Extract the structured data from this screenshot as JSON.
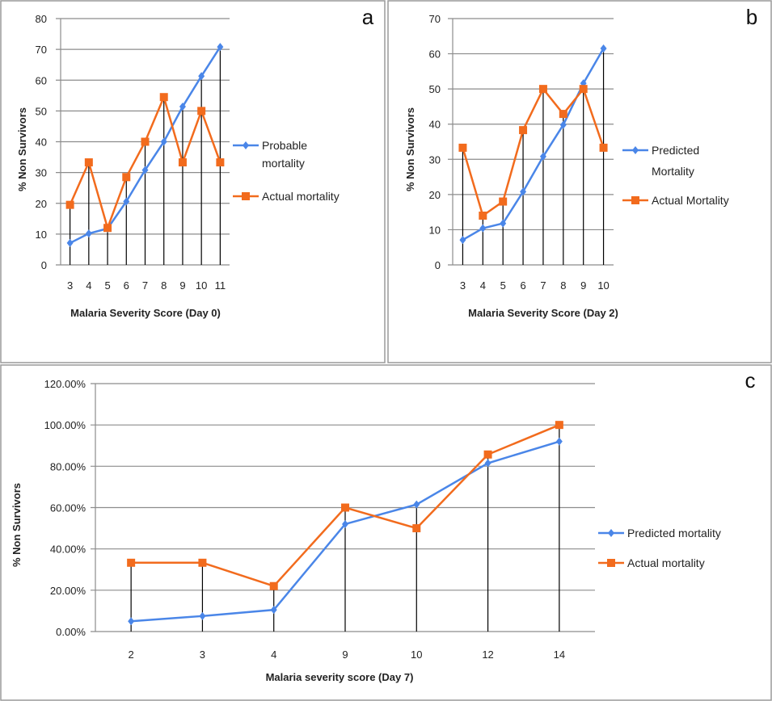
{
  "colors": {
    "predicted": "#4a86e8",
    "actual": "#f26b1d",
    "grid": "#8c8c8c",
    "drop_lines": "#000000",
    "border": "#9a9a9a"
  },
  "chart_data": [
    {
      "type": "line",
      "panel_label": "a",
      "categories": [
        "3",
        "4",
        "5",
        "6",
        "7",
        "8",
        "9",
        "10",
        "11"
      ],
      "xlabel": "Malaria  Severity Score (Day  0)",
      "ylabel": "% Non Survivors",
      "ylim": [
        0,
        80
      ],
      "yticks": [
        "0",
        "10",
        "20",
        "30",
        "40",
        "50",
        "60",
        "70",
        "80"
      ],
      "grid": true,
      "legend_placement": "right",
      "drop_lines": true,
      "series": [
        {
          "name": "Probable mortality",
          "name_lines": [
            "Probable",
            "mortality"
          ],
          "marker": "diamond",
          "color": "#4a86e8",
          "values": [
            7.1,
            10.2,
            11.8,
            20.6,
            30.8,
            40,
            51.4,
            61.3,
            70.8
          ]
        },
        {
          "name": "Actual mortality",
          "name_lines": [
            "Actual mortality"
          ],
          "marker": "square",
          "color": "#f26b1d",
          "values": [
            19.5,
            33.3,
            12,
            28.5,
            40,
            54.5,
            33.3,
            50,
            33.3
          ]
        }
      ]
    },
    {
      "type": "line",
      "panel_label": "b",
      "categories": [
        "3",
        "4",
        "5",
        "6",
        "7",
        "8",
        "9",
        "10"
      ],
      "xlabel": "Malaria  Severity Score (Day  2)",
      "ylabel": "% Non Survivors",
      "ylim": [
        0,
        70
      ],
      "yticks": [
        "0",
        "10",
        "20",
        "30",
        "40",
        "50",
        "60",
        "70"
      ],
      "grid": true,
      "legend_placement": "right",
      "drop_lines": true,
      "series": [
        {
          "name": "Predicted Mortality",
          "name_lines": [
            "Predicted",
            "Mortality"
          ],
          "marker": "diamond",
          "color": "#4a86e8",
          "values": [
            7.1,
            10.4,
            11.8,
            20.8,
            30.8,
            39.8,
            51.6,
            61.5
          ]
        },
        {
          "name": "Actual Mortality",
          "name_lines": [
            "Actual Mortality"
          ],
          "marker": "square",
          "color": "#f26b1d",
          "values": [
            33.3,
            14,
            18,
            38.3,
            50,
            42.9,
            50,
            33.3
          ]
        }
      ]
    },
    {
      "type": "line",
      "panel_label": "c",
      "categories": [
        "2",
        "3",
        "4",
        "9",
        "10",
        "12",
        "14"
      ],
      "xlabel": "Malaria severity score (Day 7)",
      "ylabel": "% Non Survivors",
      "ylim": [
        0,
        120
      ],
      "yticks": [
        "0.00%",
        "20.00%",
        "40.00%",
        "60.00%",
        "80.00%",
        "100.00%",
        "120.00%"
      ],
      "grid": true,
      "legend_placement": "right",
      "drop_lines": true,
      "series": [
        {
          "name": "Predicted mortality",
          "name_lines": [
            "Predicted mortality"
          ],
          "marker": "diamond",
          "color": "#4a86e8",
          "values": [
            5,
            7.5,
            10.5,
            52,
            61.5,
            81.5,
            92
          ]
        },
        {
          "name": "Actual mortality",
          "name_lines": [
            "Actual mortality"
          ],
          "marker": "square",
          "color": "#f26b1d",
          "values": [
            33.3,
            33.3,
            22,
            60,
            50,
            85.7,
            100
          ]
        }
      ]
    }
  ]
}
